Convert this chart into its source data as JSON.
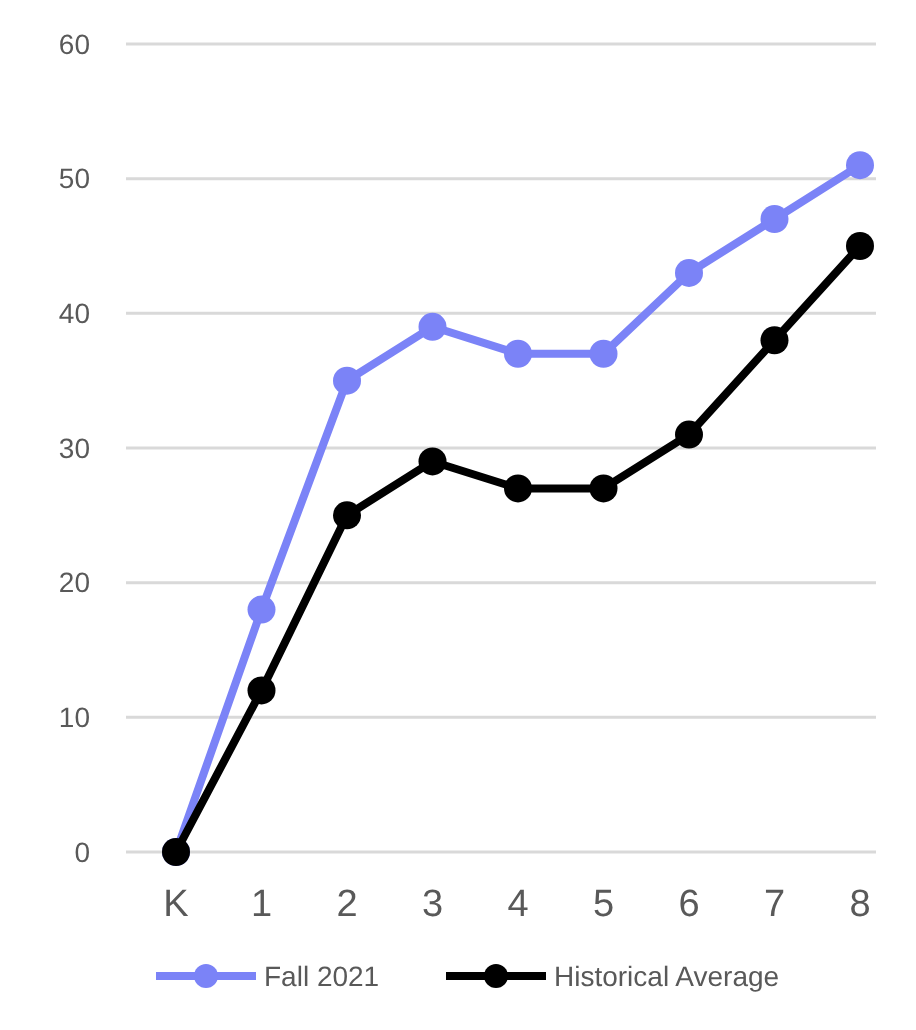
{
  "chart_data": {
    "type": "line",
    "categories": [
      "K",
      "1",
      "2",
      "3",
      "4",
      "5",
      "6",
      "7",
      "8"
    ],
    "series": [
      {
        "name": "Fall 2021",
        "color": "#7b83f7",
        "values": [
          0,
          18,
          35,
          39,
          37,
          37,
          43,
          47,
          51
        ]
      },
      {
        "name": "Historical Average",
        "color": "#000000",
        "values": [
          0,
          12,
          25,
          29,
          27,
          27,
          31,
          38,
          45
        ]
      }
    ],
    "ylim": [
      0,
      60
    ],
    "yticks": [
      0,
      10,
      20,
      30,
      40,
      50,
      60
    ],
    "grid": "y",
    "legend": "bottom",
    "marker": "circle",
    "line_style": "solid"
  }
}
